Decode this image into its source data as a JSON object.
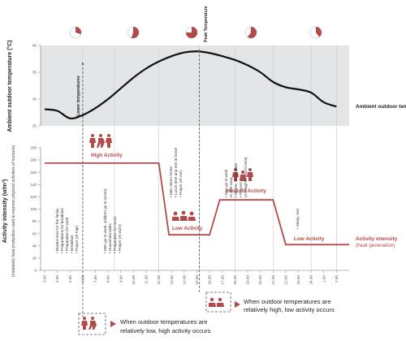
{
  "chart_data": [
    {
      "type": "line",
      "ylabel": "Ambient outdoor temperature (°C)",
      "series_label": "Ambient outdoor temperature (°C)",
      "ylim": [
        25,
        40
      ],
      "yticks": [
        25,
        30,
        35,
        40
      ],
      "x": [
        3,
        4,
        5,
        6,
        7,
        8,
        9,
        10,
        11,
        12,
        13,
        14,
        15,
        16,
        17,
        18,
        19,
        20,
        21,
        22,
        23,
        24,
        25,
        26
      ],
      "values": [
        28.1,
        27.8,
        26.4,
        27.0,
        28.3,
        30.0,
        32.0,
        34.0,
        35.7,
        37.0,
        38.0,
        38.7,
        38.9,
        38.6,
        38.0,
        37.3,
        36.3,
        35.0,
        33.2,
        32.2,
        31.8,
        31.2,
        29.4,
        28.6
      ],
      "annotations": [
        "Lower temperatures",
        "Peak Temperature"
      ]
    },
    {
      "type": "line",
      "ylabel": "Activity intensity (w/m²)",
      "ysub": "(metabolic heat production used to express physical activities of humans)",
      "series_label_1": "Activity intensity",
      "series_label_2": "(heat generation)",
      "ylim": [
        0,
        200
      ],
      "yticks": [
        0,
        20,
        40,
        60,
        80,
        100,
        120,
        140,
        160,
        180,
        200
      ],
      "x": [
        3,
        12,
        12.8,
        16,
        16.8,
        21,
        22,
        27
      ],
      "values": [
        175,
        175,
        58,
        58,
        115,
        115,
        42,
        42
      ],
      "levels": [
        "High Activity",
        "Low Activity",
        "Medium Activity",
        "Low Activity"
      ],
      "activities": [
        [
          "Busiest time for the family",
          "Preparations for breakfast",
          "Preparation for work",
          "Breakfast",
          "Prayer (Al-Fajr)"
        ],
        [
          "Men go to work, children go to school,",
          "Household tasks",
          "Preparation for lunch",
          "Prayer (Al-Zuhr)"
        ],
        [
          "Men return home",
          "Lunch time and rest at home",
          "Prayer (Al-Asr)"
        ],
        [
          "Men go to work",
          "or visit souq",
          "Dinner, social visits",
          "Prayers",
          "(Al-Maghrib and Al-Isha)"
        ],
        [
          "Sleep, rest"
        ]
      ]
    }
  ],
  "xticks": [
    "3.00",
    "4.00",
    "5.00",
    "6.00",
    "7.00",
    "8.00",
    "9.00",
    "10.00",
    "11.00",
    "12.00",
    "13.00",
    "14.00",
    "15.00",
    "16.00",
    "17.00",
    "18.00",
    "19.00",
    "20.00",
    "21.00",
    "22.00",
    "23.00",
    "24.00",
    "1.00",
    "2.00"
  ],
  "notes": {
    "low_temp_line1": "When outdoor temperatures are",
    "low_temp_line2": "relatively low, high activity occurs",
    "high_temp_line1": "When outdoor temperatures are",
    "high_temp_line2": "relatively high, low activity occurs"
  },
  "colors": {
    "activity": "#b24a4a",
    "temperature": "#111111",
    "band": "#e3e5e6",
    "grid": "#c9c9c9"
  },
  "sun_fractions": [
    0.3,
    0.55,
    0.75,
    0.6,
    0.4
  ]
}
